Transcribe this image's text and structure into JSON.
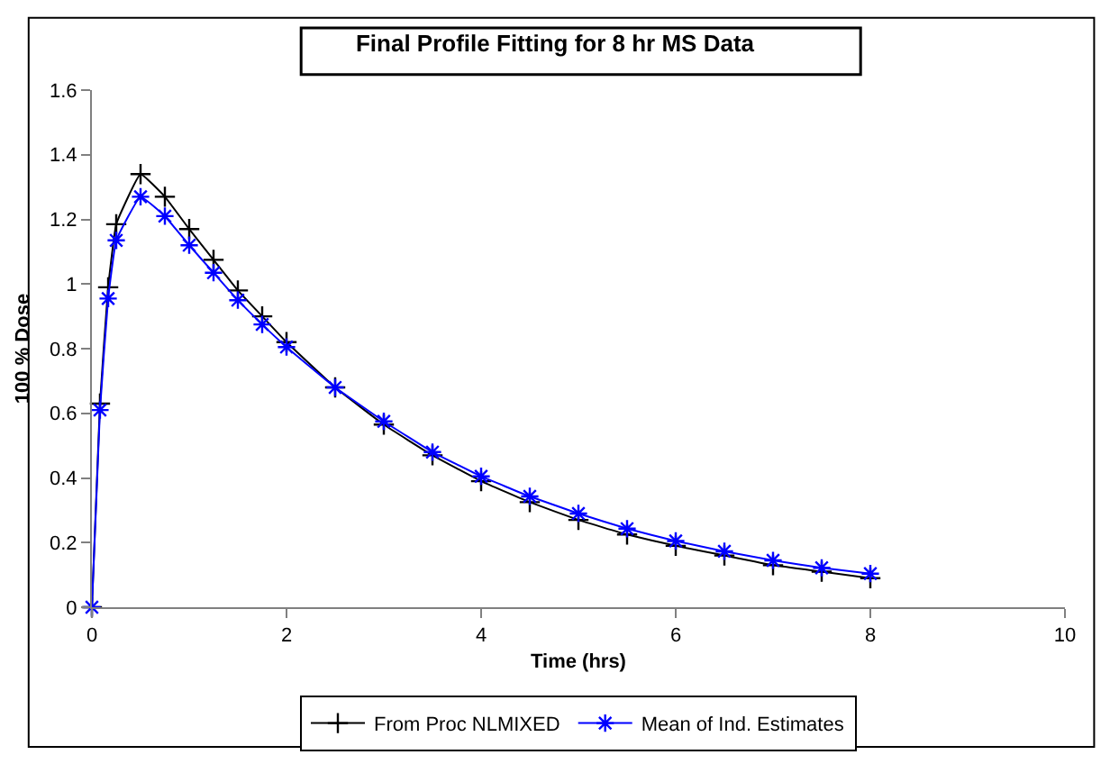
{
  "chart_data": {
    "type": "line",
    "title": "Final Profile Fitting for 8 hr MS Data",
    "xlabel": "Time (hrs)",
    "ylabel": "100 % Dose",
    "x": [
      0,
      0.083,
      0.167,
      0.25,
      0.5,
      0.75,
      1,
      1.25,
      1.5,
      1.75,
      2,
      2.5,
      3,
      3.5,
      4,
      4.5,
      5,
      5.5,
      6,
      6.5,
      7,
      7.5,
      8
    ],
    "series": [
      {
        "name": "From Proc NLMIXED",
        "color": "#000000",
        "marker": "cross",
        "values": [
          0,
          0.63,
          0.99,
          1.185,
          1.34,
          1.27,
          1.17,
          1.075,
          0.98,
          0.9,
          0.82,
          0.68,
          0.565,
          0.47,
          0.39,
          0.325,
          0.27,
          0.225,
          0.19,
          0.16,
          0.13,
          0.11,
          0.09
        ]
      },
      {
        "name": "Mean of Ind. Estimates",
        "color": "#0000ff",
        "marker": "cross",
        "values": [
          0,
          0.61,
          0.955,
          1.135,
          1.27,
          1.21,
          1.12,
          1.035,
          0.95,
          0.875,
          0.805,
          0.68,
          0.575,
          0.48,
          0.405,
          0.343,
          0.29,
          0.243,
          0.205,
          0.173,
          0.145,
          0.122,
          0.104
        ]
      }
    ],
    "xlim": [
      0,
      10
    ],
    "xticks": [
      0,
      2,
      4,
      6,
      8,
      10
    ],
    "ylim": [
      0,
      1.6
    ],
    "yticks": [
      0,
      0.2,
      0.4,
      0.6,
      0.8,
      1,
      1.2,
      1.4,
      1.6
    ],
    "legend": "bottom",
    "line_style": "solid"
  }
}
